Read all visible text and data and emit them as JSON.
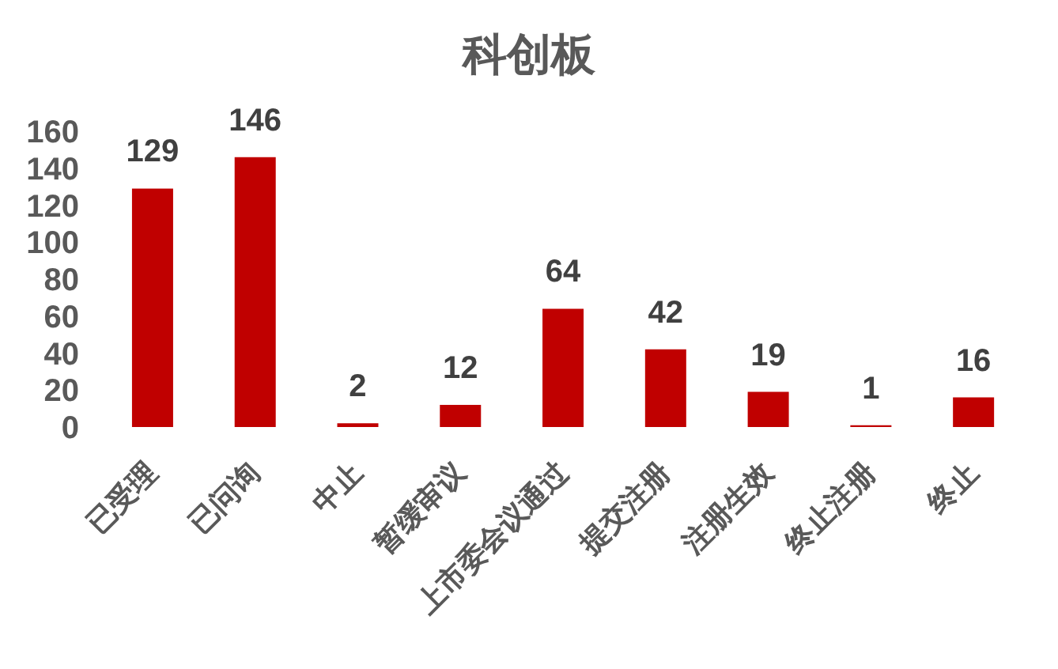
{
  "chart_data": {
    "type": "bar",
    "title": "科创板",
    "categories": [
      "已受理",
      "已问询",
      "中止",
      "暂缓审议",
      "上市委会议通过",
      "提交注册",
      "注册生效",
      "终止注册",
      "终止"
    ],
    "values": [
      129,
      146,
      2,
      12,
      64,
      42,
      19,
      1,
      16
    ],
    "color": "#c00000",
    "ylim": [
      0,
      160
    ],
    "yticks": [
      0,
      20,
      40,
      60,
      80,
      100,
      120,
      140,
      160
    ],
    "data_labels": true
  }
}
